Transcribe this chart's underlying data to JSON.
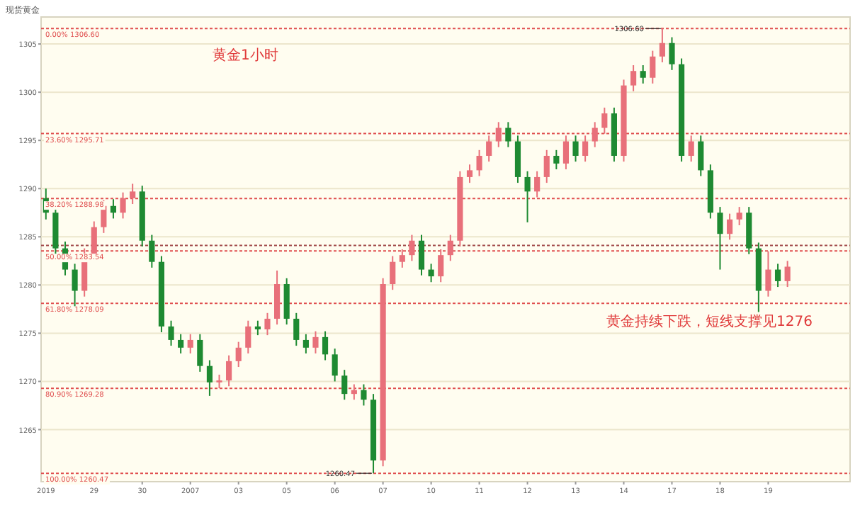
{
  "chart_data": {
    "type": "candlestick",
    "title": "现货黄金",
    "categories": [
      "2019",
      null,
      null,
      null,
      null,
      "29",
      null,
      null,
      null,
      null,
      "30",
      null,
      null,
      null,
      null,
      "2007",
      null,
      null,
      null,
      null,
      "03",
      null,
      null,
      null,
      null,
      "05",
      null,
      null,
      null,
      null,
      "06",
      null,
      null,
      null,
      null,
      "07",
      null,
      null,
      null,
      null,
      "10",
      null,
      null,
      null,
      null,
      "11",
      null,
      null,
      null,
      null,
      "12",
      null,
      null,
      null,
      null,
      "13",
      null,
      null,
      null,
      null,
      "14",
      null,
      null,
      null,
      null,
      "17",
      null,
      null,
      null,
      null,
      "18",
      null,
      null,
      null,
      null,
      "19",
      null,
      null
    ],
    "ohlc": [
      [
        1289.0,
        1290.0,
        1286.8,
        1287.5
      ],
      [
        1287.5,
        1288.2,
        1283.2,
        1283.8
      ],
      [
        1283.8,
        1284.5,
        1281.0,
        1281.6
      ],
      [
        1281.6,
        1282.2,
        1277.6,
        1279.4
      ],
      [
        1279.4,
        1283.8,
        1278.8,
        1283.1
      ],
      [
        1283.1,
        1286.6,
        1282.5,
        1286.0
      ],
      [
        1286.0,
        1288.8,
        1285.4,
        1288.2
      ],
      [
        1288.2,
        1288.9,
        1286.9,
        1287.5
      ],
      [
        1287.5,
        1289.6,
        1286.9,
        1289.0
      ],
      [
        1289.0,
        1290.5,
        1288.4,
        1289.7
      ],
      [
        1289.7,
        1290.3,
        1284.0,
        1284.6
      ],
      [
        1284.6,
        1285.2,
        1281.8,
        1282.4
      ],
      [
        1282.4,
        1283.0,
        1275.1,
        1275.7
      ],
      [
        1275.7,
        1276.3,
        1273.7,
        1274.3
      ],
      [
        1274.3,
        1274.9,
        1272.9,
        1273.5
      ],
      [
        1273.5,
        1274.9,
        1272.9,
        1274.3
      ],
      [
        1274.3,
        1274.9,
        1271.0,
        1271.6
      ],
      [
        1271.6,
        1272.2,
        1268.5,
        1269.9
      ],
      [
        1269.9,
        1270.7,
        1269.3,
        1270.1
      ],
      [
        1270.1,
        1272.7,
        1269.5,
        1272.1
      ],
      [
        1272.1,
        1274.1,
        1271.5,
        1273.5
      ],
      [
        1273.5,
        1276.3,
        1272.9,
        1275.7
      ],
      [
        1275.7,
        1276.3,
        1274.8,
        1275.4
      ],
      [
        1275.4,
        1277.1,
        1274.8,
        1276.5
      ],
      [
        1276.5,
        1281.5,
        1275.9,
        1280.1
      ],
      [
        1280.1,
        1280.7,
        1275.9,
        1276.5
      ],
      [
        1276.5,
        1277.1,
        1273.7,
        1274.3
      ],
      [
        1274.3,
        1274.9,
        1272.9,
        1273.5
      ],
      [
        1273.5,
        1275.2,
        1272.9,
        1274.6
      ],
      [
        1274.6,
        1275.2,
        1272.2,
        1272.8
      ],
      [
        1272.8,
        1273.4,
        1270.0,
        1270.6
      ],
      [
        1270.6,
        1271.2,
        1268.1,
        1268.7
      ],
      [
        1268.7,
        1269.7,
        1268.1,
        1269.1
      ],
      [
        1269.1,
        1269.7,
        1267.5,
        1268.1
      ],
      [
        1268.1,
        1268.7,
        1260.47,
        1261.8
      ],
      [
        1261.8,
        1280.7,
        1261.2,
        1280.1
      ],
      [
        1280.1,
        1283.0,
        1279.5,
        1282.4
      ],
      [
        1282.4,
        1283.7,
        1281.8,
        1283.1
      ],
      [
        1283.1,
        1285.2,
        1282.5,
        1284.6
      ],
      [
        1284.6,
        1285.2,
        1281.0,
        1281.6
      ],
      [
        1281.6,
        1282.2,
        1280.3,
        1280.9
      ],
      [
        1280.9,
        1283.7,
        1280.3,
        1283.1
      ],
      [
        1283.1,
        1285.2,
        1282.5,
        1284.6
      ],
      [
        1284.6,
        1291.8,
        1284.0,
        1291.2
      ],
      [
        1291.2,
        1292.5,
        1290.6,
        1291.9
      ],
      [
        1291.9,
        1294.0,
        1291.3,
        1293.4
      ],
      [
        1293.4,
        1295.5,
        1292.8,
        1294.9
      ],
      [
        1294.9,
        1296.9,
        1294.3,
        1296.3
      ],
      [
        1296.3,
        1296.9,
        1294.3,
        1294.9
      ],
      [
        1294.9,
        1295.5,
        1290.6,
        1291.2
      ],
      [
        1291.2,
        1291.8,
        1286.5,
        1289.7
      ],
      [
        1289.7,
        1291.8,
        1289.1,
        1291.2
      ],
      [
        1291.2,
        1294.0,
        1290.6,
        1293.4
      ],
      [
        1293.4,
        1294.0,
        1292.0,
        1292.6
      ],
      [
        1292.6,
        1295.5,
        1292.0,
        1294.9
      ],
      [
        1294.9,
        1295.5,
        1292.8,
        1293.4
      ],
      [
        1293.4,
        1295.5,
        1292.8,
        1294.9
      ],
      [
        1294.9,
        1296.9,
        1294.3,
        1296.3
      ],
      [
        1296.3,
        1298.4,
        1295.7,
        1297.8
      ],
      [
        1297.8,
        1298.4,
        1292.8,
        1293.4
      ],
      [
        1293.4,
        1301.3,
        1292.8,
        1300.7
      ],
      [
        1300.7,
        1302.8,
        1300.1,
        1302.2
      ],
      [
        1302.2,
        1302.8,
        1300.9,
        1301.5
      ],
      [
        1301.5,
        1304.3,
        1300.9,
        1303.7
      ],
      [
        1303.7,
        1306.6,
        1303.1,
        1305.1
      ],
      [
        1305.1,
        1305.7,
        1302.3,
        1302.9
      ],
      [
        1302.9,
        1303.5,
        1292.8,
        1293.4
      ],
      [
        1293.4,
        1295.5,
        1292.8,
        1294.9
      ],
      [
        1294.9,
        1295.5,
        1291.3,
        1291.9
      ],
      [
        1291.9,
        1292.5,
        1286.9,
        1287.5
      ],
      [
        1287.5,
        1288.1,
        1281.6,
        1285.3
      ],
      [
        1285.3,
        1287.4,
        1284.7,
        1286.8
      ],
      [
        1286.8,
        1288.1,
        1286.2,
        1287.5
      ],
      [
        1287.5,
        1288.1,
        1283.2,
        1283.8
      ],
      [
        1283.8,
        1284.4,
        1277.2,
        1279.4
      ],
      [
        1279.4,
        1283.5,
        1278.8,
        1281.6
      ],
      [
        1281.6,
        1282.2,
        1279.8,
        1280.4
      ],
      [
        1280.4,
        1282.5,
        1279.8,
        1281.9
      ]
    ],
    "colors": [
      "#1e8a32",
      "#1e8a32",
      "#1e8a32",
      "#1e8a32",
      "#e8707a",
      "#e8707a",
      "#e8707a",
      "#1e8a32",
      "#e8707a",
      "#e8707a",
      "#1e8a32",
      "#1e8a32",
      "#1e8a32",
      "#1e8a32",
      "#1e8a32",
      "#e8707a",
      "#1e8a32",
      "#1e8a32",
      "#e8707a",
      "#e8707a",
      "#e8707a",
      "#e8707a",
      "#1e8a32",
      "#e8707a",
      "#e8707a",
      "#1e8a32",
      "#1e8a32",
      "#1e8a32",
      "#e8707a",
      "#1e8a32",
      "#1e8a32",
      "#1e8a32",
      "#e8707a",
      "#1e8a32",
      "#1e8a32",
      "#e8707a",
      "#e8707a",
      "#e8707a",
      "#e8707a",
      "#1e8a32",
      "#1e8a32",
      "#e8707a",
      "#e8707a",
      "#e8707a",
      "#e8707a",
      "#e8707a",
      "#e8707a",
      "#e8707a",
      "#1e8a32",
      "#1e8a32",
      "#1e8a32",
      "#e8707a",
      "#e8707a",
      "#1e8a32",
      "#e8707a",
      "#1e8a32",
      "#e8707a",
      "#e8707a",
      "#e8707a",
      "#1e8a32",
      "#e8707a",
      "#e8707a",
      "#1e8a32",
      "#e8707a",
      "#e8707a",
      "#1e8a32",
      "#1e8a32",
      "#e8707a",
      "#1e8a32",
      "#1e8a32",
      "#1e8a32",
      "#e8707a",
      "#e8707a",
      "#1e8a32",
      "#1e8a32",
      "#e8707a",
      "#1e8a32",
      "#e8707a"
    ],
    "ylim": [
      1259.6,
      1307.8
    ],
    "yticks": [
      1265,
      1270,
      1275,
      1280,
      1285,
      1290,
      1295,
      1300,
      1305
    ],
    "grid": "y",
    "ref_lines": [
      {
        "axis": "y",
        "value": 1306.6,
        "label": "0.00% 1306.60",
        "color": "#e05050",
        "line_style": "dashed"
      },
      {
        "axis": "y",
        "value": 1295.71,
        "label": "23.60% 1295.71",
        "color": "#e05050",
        "line_style": "dashed"
      },
      {
        "axis": "y",
        "value": 1288.98,
        "label": "38.20% 1288.98",
        "color": "#e05050",
        "line_style": "dashed"
      },
      {
        "axis": "y",
        "value": 1284.1,
        "label": null,
        "color": "#a04848",
        "line_style": "dashed"
      },
      {
        "axis": "y",
        "value": 1283.54,
        "label": "50.00% 1283.54",
        "color": "#e05050",
        "line_style": "dashed"
      },
      {
        "axis": "y",
        "value": 1278.09,
        "label": "61.80% 1278.09",
        "color": "#e05050",
        "line_style": "dashed"
      },
      {
        "axis": "y",
        "value": 1269.28,
        "label": "80.90% 1269.28",
        "color": "#e05050",
        "line_style": "dashed"
      },
      {
        "axis": "y",
        "value": 1260.47,
        "label": "100.00% 1260.47",
        "color": "#e05050",
        "line_style": "dashed"
      }
    ],
    "annotations": [
      "黄金1小时",
      "黄金持续下跌，短线支撑见1276",
      {
        "text": "1306.60",
        "y": 1306.6
      },
      {
        "text": "1260.47",
        "y": 1260.47
      }
    ]
  }
}
